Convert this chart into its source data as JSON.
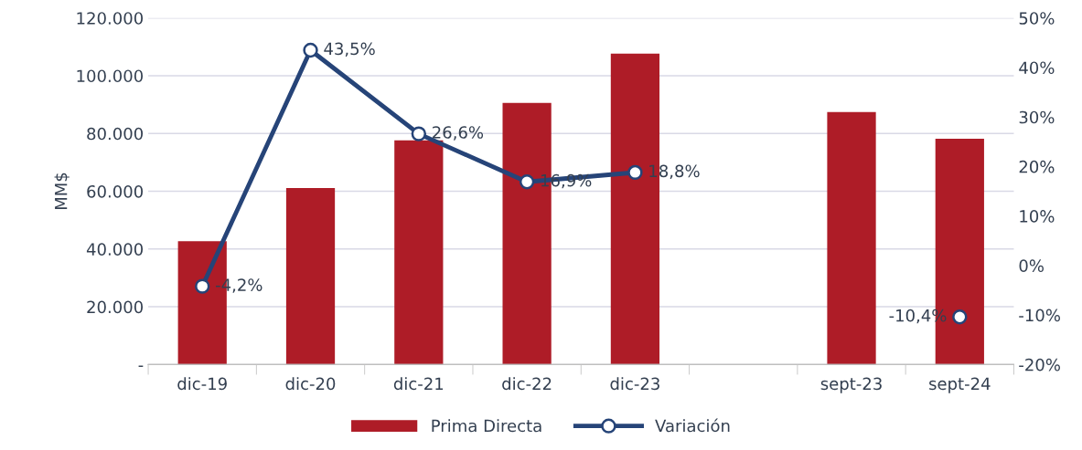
{
  "chart_data": {
    "type": "bar",
    "categories": [
      "dic-19",
      "dic-20",
      "dic-21",
      "dic-22",
      "dic-23",
      null,
      "sept-23",
      "sept-24"
    ],
    "ylabel": "MM$",
    "ylim": [
      0,
      120000
    ],
    "yticks": [
      {
        "value": 0,
        "label": "-"
      },
      {
        "value": 20000,
        "label": "20.000"
      },
      {
        "value": 40000,
        "label": "40.000"
      },
      {
        "value": 60000,
        "label": "60.000"
      },
      {
        "value": 80000,
        "label": "80.000"
      },
      {
        "value": 100000,
        "label": "100.000"
      },
      {
        "value": 120000,
        "label": "120.000"
      }
    ],
    "y2lim": [
      -20,
      50
    ],
    "y2ticks": [
      {
        "value": -20,
        "label": "-20%"
      },
      {
        "value": -10,
        "label": "-10%"
      },
      {
        "value": 0,
        "label": "0%"
      },
      {
        "value": 10,
        "label": "10%"
      },
      {
        "value": 20,
        "label": "20%"
      },
      {
        "value": 30,
        "label": "30%"
      },
      {
        "value": 40,
        "label": "40%"
      },
      {
        "value": 50,
        "label": "50%"
      }
    ],
    "grid": "y",
    "legend": "bottom",
    "series": [
      {
        "name": "Prima Directa",
        "color": "#ae1c27",
        "values": [
          42700,
          61100,
          77600,
          90600,
          107700,
          null,
          87400,
          78200
        ]
      },
      {
        "name": "Variación",
        "type": "line",
        "axis": "y2",
        "color": "#264478",
        "marker": "circle",
        "line_style": "solid",
        "values": [
          -4.2,
          43.5,
          26.6,
          16.9,
          18.8,
          null,
          null,
          -10.4
        ],
        "value_labels": [
          "-4,2%",
          "43,5%",
          "26,6%",
          "16,9%",
          "18,8%",
          null,
          null,
          "-10,4%"
        ]
      }
    ]
  }
}
